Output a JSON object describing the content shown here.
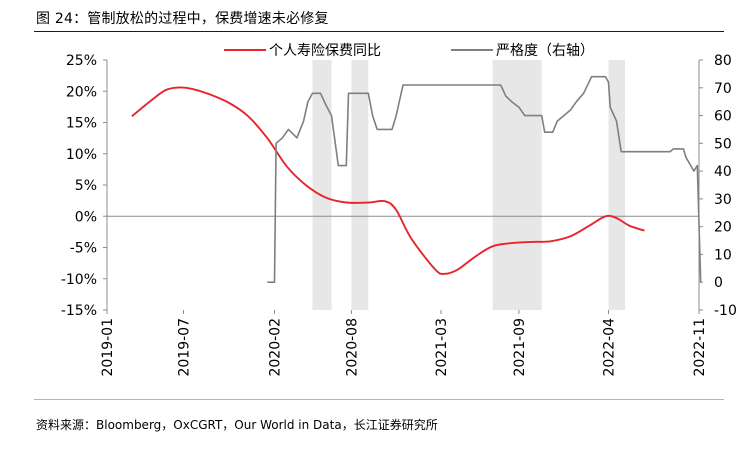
{
  "figure": {
    "title": "图 24：管制放松的过程中，保费增速未必修复",
    "source": "资料来源：Bloomberg，OxCGRT，Our World in Data，长江证券研究所"
  },
  "chart_data": {
    "type": "line",
    "x_range": [
      "2019-01",
      "2022-11"
    ],
    "x_tick_labels": [
      "2019-01",
      "2019-07",
      "2020-02",
      "2020-08",
      "2021-03",
      "2021-09",
      "2022-04",
      "2022-11"
    ],
    "left_axis": {
      "ylim": [
        -15,
        25
      ],
      "ticks": [
        "-15%",
        "-10%",
        "-5%",
        "0%",
        "5%",
        "10%",
        "15%",
        "20%",
        "25%"
      ]
    },
    "right_axis": {
      "ylim": [
        -10,
        80
      ],
      "ticks": [
        "-10",
        "0",
        "10",
        "20",
        "30",
        "40",
        "50",
        "60",
        "70",
        "80"
      ]
    },
    "legend": [
      {
        "name": "个人寿险保费同比",
        "color": "#e8242b"
      },
      {
        "name": "严格度（右轴）",
        "color": "#7f7f7f"
      }
    ],
    "shaded_periods": [
      [
        "2020-05-01",
        "2020-06-15"
      ],
      [
        "2020-08-01",
        "2020-09-10"
      ],
      [
        "2021-07-01",
        "2021-10-25"
      ],
      [
        "2022-04-01",
        "2022-05-10"
      ]
    ],
    "series": [
      {
        "name": "个人寿险保费同比",
        "axis": "left",
        "color": "#e8242b",
        "points": [
          [
            "2019-03-01",
            16.0
          ],
          [
            "2019-04-15",
            18.5
          ],
          [
            "2019-05-20",
            20.2
          ],
          [
            "2019-06-20",
            20.6
          ],
          [
            "2019-07-20",
            20.4
          ],
          [
            "2019-09-01",
            19.5
          ],
          [
            "2019-10-15",
            18.2
          ],
          [
            "2019-12-01",
            16.0
          ],
          [
            "2020-01-15",
            12.5
          ],
          [
            "2020-03-01",
            8.0
          ],
          [
            "2020-04-15",
            5.0
          ],
          [
            "2020-06-01",
            3.0
          ],
          [
            "2020-07-20",
            2.2
          ],
          [
            "2020-09-10",
            2.2
          ],
          [
            "2020-10-20",
            2.4
          ],
          [
            "2020-11-15",
            1.0
          ],
          [
            "2020-12-20",
            -3.5
          ],
          [
            "2021-02-15",
            -8.5
          ],
          [
            "2021-03-10",
            -9.2
          ],
          [
            "2021-04-10",
            -8.5
          ],
          [
            "2021-05-20",
            -6.5
          ],
          [
            "2021-07-01",
            -4.8
          ],
          [
            "2021-08-15",
            -4.3
          ],
          [
            "2021-10-01",
            -4.1
          ],
          [
            "2021-11-15",
            -4.0
          ],
          [
            "2022-01-01",
            -3.2
          ],
          [
            "2022-02-15",
            -1.5
          ],
          [
            "2022-03-25",
            0.0
          ],
          [
            "2022-04-20",
            -0.3
          ],
          [
            "2022-05-20",
            -1.5
          ],
          [
            "2022-06-25",
            -2.3
          ]
        ]
      },
      {
        "name": "严格度（右轴）",
        "axis": "right",
        "color": "#7f7f7f",
        "step": true,
        "points": [
          [
            "2020-01-15",
            0
          ],
          [
            "2020-02-01",
            0
          ],
          [
            "2020-02-05",
            50
          ],
          [
            "2020-02-20",
            52
          ],
          [
            "2020-03-05",
            55
          ],
          [
            "2020-03-25",
            52
          ],
          [
            "2020-04-10",
            58
          ],
          [
            "2020-04-20",
            65
          ],
          [
            "2020-05-01",
            68
          ],
          [
            "2020-05-20",
            68
          ],
          [
            "2020-06-01",
            64
          ],
          [
            "2020-06-15",
            60
          ],
          [
            "2020-07-01",
            42
          ],
          [
            "2020-07-20",
            42
          ],
          [
            "2020-07-25",
            68
          ],
          [
            "2020-09-10",
            68
          ],
          [
            "2020-09-20",
            60
          ],
          [
            "2020-10-01",
            55
          ],
          [
            "2020-11-05",
            55
          ],
          [
            "2020-11-15",
            60
          ],
          [
            "2020-12-01",
            71
          ],
          [
            "2021-07-20",
            71
          ],
          [
            "2021-08-01",
            67
          ],
          [
            "2021-08-15",
            65
          ],
          [
            "2021-09-01",
            63
          ],
          [
            "2021-09-15",
            60
          ],
          [
            "2021-10-25",
            60
          ],
          [
            "2021-11-01",
            54
          ],
          [
            "2021-11-20",
            54
          ],
          [
            "2021-12-01",
            58
          ],
          [
            "2022-01-01",
            62
          ],
          [
            "2022-01-15",
            65
          ],
          [
            "2022-02-01",
            68
          ],
          [
            "2022-02-20",
            74
          ],
          [
            "2022-03-25",
            74
          ],
          [
            "2022-04-01",
            72
          ],
          [
            "2022-04-05",
            63
          ],
          [
            "2022-04-20",
            58
          ],
          [
            "2022-05-01",
            47
          ],
          [
            "2022-08-25",
            47
          ],
          [
            "2022-09-01",
            48
          ],
          [
            "2022-09-25",
            48
          ],
          [
            "2022-10-01",
            45
          ],
          [
            "2022-10-20",
            40
          ],
          [
            "2022-10-28",
            42
          ],
          [
            "2022-11-05",
            0
          ]
        ]
      }
    ]
  }
}
